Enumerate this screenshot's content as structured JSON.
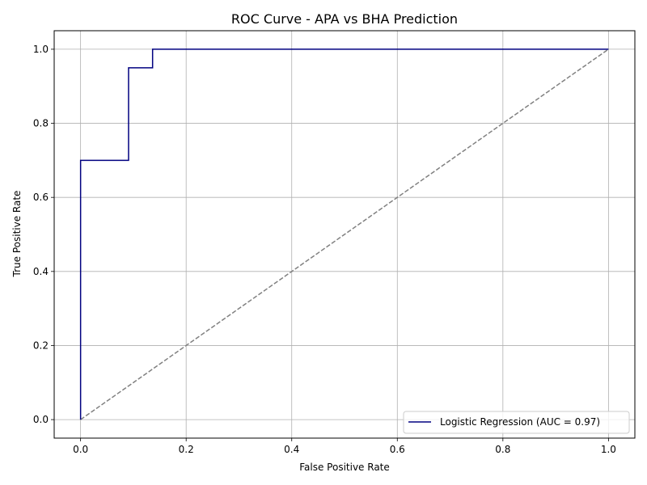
{
  "chart_data": {
    "type": "line",
    "title": "ROC Curve - APA vs BHA Prediction",
    "xlabel": "False Positive Rate",
    "ylabel": "True Positive Rate",
    "xlim": [
      -0.05,
      1.05
    ],
    "ylim": [
      -0.05,
      1.05
    ],
    "x_ticks": [
      0.0,
      0.2,
      0.4,
      0.6,
      0.8,
      1.0
    ],
    "y_ticks": [
      0.0,
      0.2,
      0.4,
      0.6,
      0.8,
      1.0
    ],
    "x_tick_labels": [
      "0.0",
      "0.2",
      "0.4",
      "0.6",
      "0.8",
      "1.0"
    ],
    "y_tick_labels": [
      "0.0",
      "0.2",
      "0.4",
      "0.6",
      "0.8",
      "1.0"
    ],
    "grid": true,
    "legend_position": "lower-right",
    "series": [
      {
        "name": "Logistic Regression (AUC = 0.97)",
        "color": "#000080",
        "style": "solid",
        "x": [
          0.0,
          0.0,
          0.0909,
          0.0909,
          0.1364,
          0.1364,
          1.0
        ],
        "y": [
          0.0,
          0.7,
          0.7,
          0.95,
          0.95,
          1.0,
          1.0
        ]
      },
      {
        "color": "#808080",
        "style": "dashed",
        "x": [
          0.0,
          1.0
        ],
        "y": [
          0.0,
          1.0
        ]
      }
    ]
  }
}
